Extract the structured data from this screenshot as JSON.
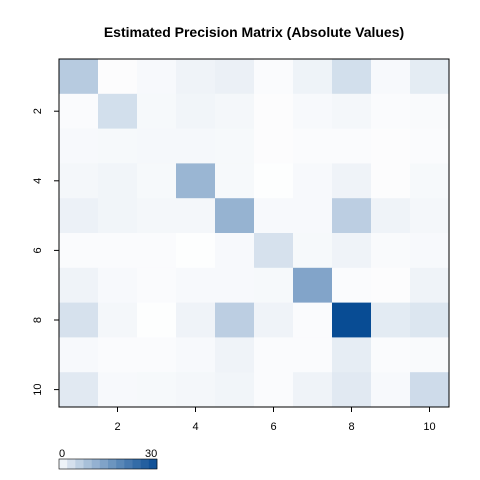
{
  "chart_data": {
    "type": "heatmap",
    "title": "Estimated Precision Matrix (Absolute Values)",
    "xlabel": "",
    "ylabel": "",
    "rows": [
      1,
      2,
      3,
      4,
      5,
      6,
      7,
      8,
      9,
      10
    ],
    "cols": [
      1,
      2,
      3,
      4,
      5,
      6,
      7,
      8,
      9,
      10
    ],
    "x_ticks": [
      "2",
      "4",
      "6",
      "8",
      "10"
    ],
    "y_ticks": [
      "2",
      "4",
      "6",
      "8",
      "10"
    ],
    "values": [
      [
        7.0,
        0.2,
        0.5,
        1.2,
        1.6,
        0.3,
        1.3,
        4.0,
        0.5,
        2.2
      ],
      [
        0.3,
        4.0,
        0.6,
        1.0,
        0.8,
        0.2,
        0.5,
        0.8,
        0.3,
        0.4
      ],
      [
        0.5,
        0.6,
        0.7,
        0.7,
        0.6,
        0.2,
        0.3,
        0.3,
        0.2,
        0.3
      ],
      [
        0.8,
        1.0,
        0.6,
        10.5,
        0.6,
        0.1,
        0.5,
        1.2,
        0.2,
        0.6
      ],
      [
        1.5,
        1.0,
        0.8,
        0.8,
        11.0,
        0.5,
        0.5,
        6.5,
        1.2,
        0.8
      ],
      [
        0.3,
        0.3,
        0.3,
        0.1,
        0.5,
        3.6,
        0.6,
        1.2,
        0.4,
        0.5
      ],
      [
        1.2,
        0.5,
        0.3,
        0.5,
        0.5,
        0.6,
        13.5,
        0.3,
        0.2,
        1.2
      ],
      [
        3.6,
        0.8,
        0.1,
        1.2,
        6.5,
        1.2,
        0.3,
        30.0,
        2.3,
        3.0
      ],
      [
        0.5,
        0.3,
        0.3,
        0.5,
        1.2,
        0.3,
        0.3,
        2.0,
        0.3,
        0.4
      ],
      [
        2.5,
        0.5,
        0.6,
        0.8,
        1.0,
        0.3,
        1.2,
        2.5,
        0.5,
        4.5
      ]
    ],
    "colorscale": {
      "min": 0,
      "max": 30,
      "min_label": "0",
      "max_label": "30",
      "steps": 12,
      "low_color": "#ffffff",
      "high_color": "#084c94"
    },
    "grid": false,
    "legend_position": "bottom-left"
  }
}
